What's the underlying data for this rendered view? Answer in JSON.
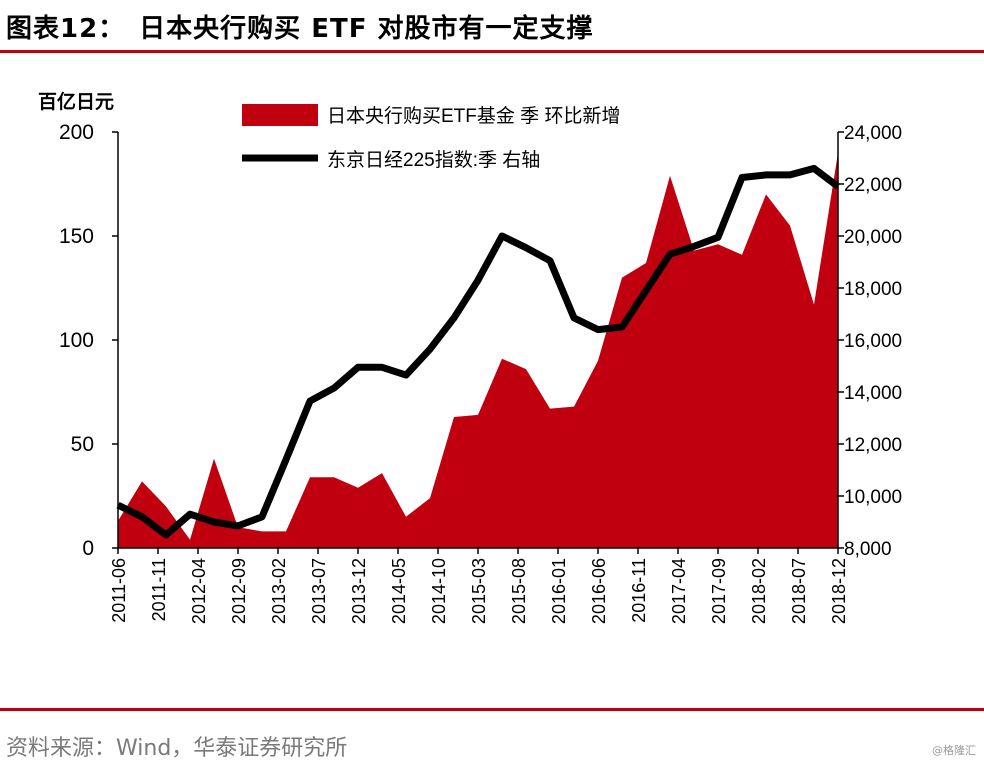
{
  "header": {
    "title": "图表12：　日本央行购买 ETF 对股市有一定支撑"
  },
  "footer": {
    "source": "资料来源：Wind，华泰证券研究所",
    "watermark": "@格隆汇"
  },
  "chart_data": {
    "type": "area",
    "ylabel_left": "百亿日元",
    "ylim_left": [
      0,
      200
    ],
    "yticks_left": [
      "0",
      "50",
      "100",
      "150",
      "200"
    ],
    "ylim_right": [
      8000,
      24000
    ],
    "yticks_right": [
      "8,000",
      "10,000",
      "12,000",
      "14,000",
      "16,000",
      "18,000",
      "20,000",
      "22,000",
      "24,000"
    ],
    "x_tick_labels": [
      "2011-06",
      "2011-11",
      "2012-04",
      "2012-09",
      "2013-02",
      "2013-07",
      "2013-12",
      "2014-05",
      "2014-10",
      "2015-03",
      "2015-08",
      "2016-01",
      "2016-06",
      "2016-11",
      "2017-04",
      "2017-09",
      "2018-02",
      "2018-07",
      "2018-12"
    ],
    "legend": {
      "position": "top-center",
      "entries": [
        "日本央行购买ETF基金 季 环比新增",
        "东京日经225指数:季 右轴"
      ]
    },
    "series": [
      {
        "name": "日本央行购买ETF基金 季 环比新增",
        "type": "area",
        "axis": "left",
        "color": "#c0000f",
        "x": [
          "2011-06",
          "2011-09",
          "2011-12",
          "2012-03",
          "2012-06",
          "2012-09",
          "2012-12",
          "2013-03",
          "2013-06",
          "2013-09",
          "2013-12",
          "2014-03",
          "2014-06",
          "2014-09",
          "2014-12",
          "2015-03",
          "2015-06",
          "2015-09",
          "2015-12",
          "2016-03",
          "2016-06",
          "2016-09",
          "2016-12",
          "2017-03",
          "2017-06",
          "2017-09",
          "2017-12",
          "2018-03",
          "2018-06",
          "2018-09",
          "2018-12"
        ],
        "values": [
          13,
          32,
          20,
          4,
          43,
          10,
          8,
          8,
          34,
          34,
          29,
          36,
          15,
          24,
          63,
          64,
          91,
          86,
          67,
          68,
          90,
          130,
          137,
          179,
          143,
          146,
          141,
          170,
          155,
          117,
          190
        ]
      },
      {
        "name": "东京日经225指数:季 右轴",
        "type": "line",
        "axis": "right",
        "color": "#000000",
        "x": [
          "2011-06",
          "2011-09",
          "2011-12",
          "2012-03",
          "2012-06",
          "2012-09",
          "2012-12",
          "2013-03",
          "2013-06",
          "2013-09",
          "2013-12",
          "2014-03",
          "2014-06",
          "2014-09",
          "2014-12",
          "2015-03",
          "2015-06",
          "2015-09",
          "2015-12",
          "2016-03",
          "2016-06",
          "2016-09",
          "2016-12",
          "2017-03",
          "2017-06",
          "2017-09",
          "2017-12",
          "2018-03",
          "2018-06",
          "2018-09",
          "2018-12"
        ],
        "values": [
          9650,
          9200,
          8500,
          9300,
          9000,
          8850,
          9200,
          11400,
          13650,
          14150,
          14950,
          14950,
          14650,
          15650,
          16850,
          18300,
          20000,
          19550,
          19050,
          16850,
          16400,
          16500,
          17900,
          19300,
          19600,
          19950,
          22250,
          22350,
          22350,
          22600,
          21900
        ]
      }
    ]
  }
}
